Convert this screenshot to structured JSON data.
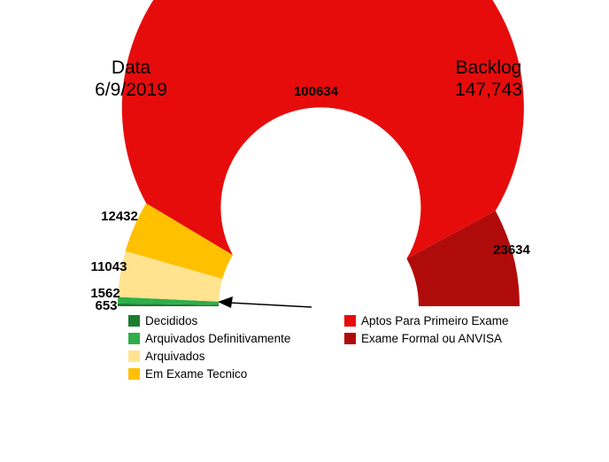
{
  "header": {
    "date_label": "Data",
    "date_value": "6/9/2019",
    "backlog_label": "Backlog",
    "backlog_value": "147,743"
  },
  "chart_data": {
    "type": "pie",
    "subtype": "half-donut-gauge",
    "title": "Backlog 147,743 - Data 6/9/2019",
    "categories": [
      "Decididos",
      "Arquivados Definitivamente",
      "Arquivados",
      "Em Exame Tecnico",
      "Aptos Para Primeiro Exame",
      "Exame Formal ou ANVISA"
    ],
    "values": [
      653,
      1562,
      11043,
      12432,
      100634,
      23634
    ],
    "colors": [
      "#1b7b31",
      "#2fae49",
      "#ffe38f",
      "#ffc000",
      "#e60c0c",
      "#b00b0b"
    ],
    "start_angle_deg": 180,
    "sweep_deg": 180,
    "inner_radius_ratio": 0.5,
    "legend_position": "bottom",
    "annotation": "arrow pointing to the small green segments at bottom-left"
  }
}
